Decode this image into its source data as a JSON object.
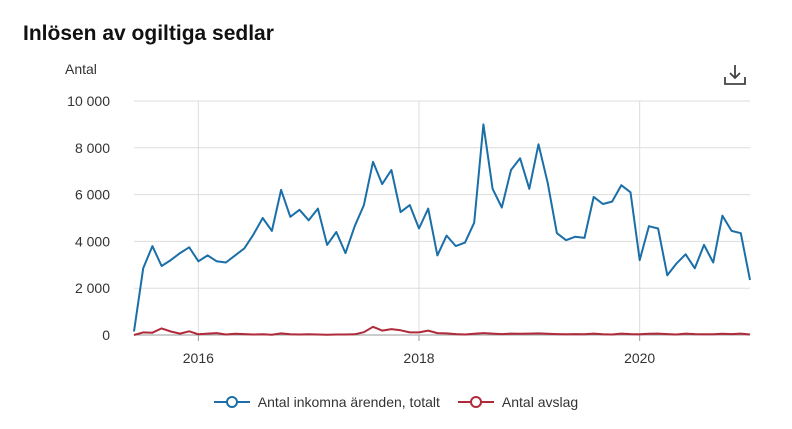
{
  "chart_data": {
    "type": "line",
    "title": "Inlösen av ogiltiga sedlar",
    "ylabel": "Antal",
    "xlabel": "",
    "ylim": [
      0,
      10000
    ],
    "xlim": [
      "2015-06",
      "2021-01"
    ],
    "yticks": [
      0,
      2000,
      4000,
      6000,
      8000,
      10000
    ],
    "ytick_labels": [
      "0",
      "2 000",
      "4 000",
      "6 000",
      "8 000",
      "10 000"
    ],
    "xticks": [
      "2016-01",
      "2018-01",
      "2020-01"
    ],
    "xtick_labels": [
      "2016",
      "2018",
      "2020"
    ],
    "grid": true,
    "legend_position": "bottom",
    "x": [
      "2015-06",
      "2015-07",
      "2015-08",
      "2015-09",
      "2015-10",
      "2015-11",
      "2015-12",
      "2016-01",
      "2016-02",
      "2016-03",
      "2016-04",
      "2016-05",
      "2016-06",
      "2016-07",
      "2016-08",
      "2016-09",
      "2016-10",
      "2016-11",
      "2016-12",
      "2017-01",
      "2017-02",
      "2017-03",
      "2017-04",
      "2017-05",
      "2017-06",
      "2017-07",
      "2017-08",
      "2017-09",
      "2017-10",
      "2017-11",
      "2017-12",
      "2018-01",
      "2018-02",
      "2018-03",
      "2018-04",
      "2018-05",
      "2018-06",
      "2018-07",
      "2018-08",
      "2018-09",
      "2018-10",
      "2018-11",
      "2018-12",
      "2019-01",
      "2019-02",
      "2019-03",
      "2019-04",
      "2019-05",
      "2019-06",
      "2019-07",
      "2019-08",
      "2019-09",
      "2019-10",
      "2019-11",
      "2019-12",
      "2020-01",
      "2020-02",
      "2020-03",
      "2020-04",
      "2020-05",
      "2020-06",
      "2020-07",
      "2020-08",
      "2020-09",
      "2020-10",
      "2020-11",
      "2020-12",
      "2021-01"
    ],
    "series": [
      {
        "name": "Antal inkomna ärenden, totalt",
        "color": "#1a6fa8",
        "values": [
          150,
          2850,
          3800,
          2950,
          3200,
          3500,
          3750,
          3150,
          3400,
          3150,
          3100,
          3400,
          3700,
          4300,
          5000,
          4450,
          6200,
          5050,
          5350,
          4900,
          5400,
          3850,
          4400,
          3500,
          4650,
          5550,
          7400,
          6450,
          7050,
          5250,
          5550,
          4550,
          5400,
          3400,
          4250,
          3800,
          3950,
          4800,
          9000,
          6250,
          5450,
          7050,
          7550,
          6250,
          8150,
          6500,
          4350,
          4050,
          4200,
          4150,
          5900,
          5600,
          5700,
          6400,
          6100,
          3200,
          4650,
          4550,
          2550,
          3050,
          3450,
          2850,
          3850,
          3100,
          5100,
          4450,
          4350,
          2350
        ]
      },
      {
        "name": "Antal avslag",
        "color": "#b02a3a",
        "values": [
          0,
          110,
          100,
          280,
          150,
          60,
          160,
          30,
          60,
          80,
          20,
          50,
          40,
          20,
          30,
          10,
          70,
          30,
          20,
          30,
          20,
          10,
          20,
          20,
          30,
          120,
          350,
          190,
          250,
          200,
          110,
          110,
          190,
          80,
          70,
          40,
          20,
          50,
          80,
          60,
          40,
          60,
          50,
          60,
          70,
          50,
          40,
          30,
          40,
          30,
          60,
          30,
          20,
          60,
          40,
          30,
          50,
          60,
          40,
          20,
          60,
          40,
          30,
          30,
          50,
          40,
          60,
          20
        ]
      }
    ]
  },
  "legend": {
    "items": [
      {
        "label": "Antal inkomna ärenden, totalt",
        "color": "#1a6fa8"
      },
      {
        "label": "Antal avslag",
        "color": "#b02a3a"
      }
    ]
  },
  "toolbar": {
    "download_icon": "download-icon"
  }
}
